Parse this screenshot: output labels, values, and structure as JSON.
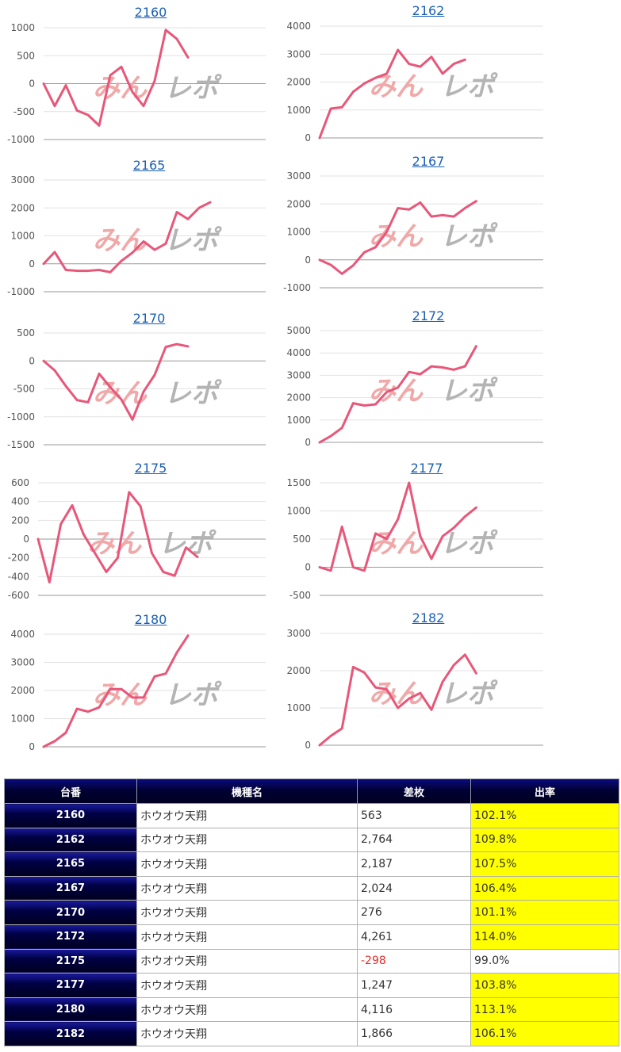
{
  "colors": {
    "line": "#e8577a",
    "watermark_pink": "#f0a8a8",
    "watermark_gray": "#b4b4b4",
    "highlight": "#ffff00",
    "header_bg": "#000044",
    "negative": "#e03030"
  },
  "watermark": "みんレポ",
  "chart_data": [
    {
      "type": "line",
      "title": "2160",
      "yticks": [
        1000,
        500,
        0,
        -500,
        -1000
      ],
      "ylim": [
        -1000,
        1000
      ],
      "series": [
        {
          "values": [
            0,
            -400,
            -30,
            -480,
            -560,
            -750,
            150,
            300,
            -150,
            -400,
            50,
            960,
            800,
            470
          ]
        }
      ]
    },
    {
      "type": "line",
      "title": "2162",
      "yticks": [
        4000,
        3000,
        2000,
        1000,
        0
      ],
      "ylim": [
        0,
        4000
      ],
      "series": [
        {
          "values": [
            0,
            1050,
            1100,
            1650,
            1950,
            2150,
            2300,
            3150,
            2650,
            2550,
            2900,
            2300,
            2650,
            2800
          ]
        }
      ]
    },
    {
      "type": "line",
      "title": "2165",
      "yticks": [
        3000,
        2000,
        1000,
        0,
        -1000
      ],
      "ylim": [
        -1000,
        3000
      ],
      "series": [
        {
          "values": [
            0,
            420,
            -220,
            -250,
            -250,
            -220,
            -300,
            100,
            400,
            800,
            500,
            720,
            1850,
            1600,
            2000,
            2200
          ]
        }
      ]
    },
    {
      "type": "line",
      "title": "2167",
      "yticks": [
        3000,
        2000,
        1000,
        0,
        -1000
      ],
      "ylim": [
        -1000,
        3000
      ],
      "series": [
        {
          "values": [
            0,
            -180,
            -500,
            -200,
            270,
            450,
            1000,
            1850,
            1800,
            2050,
            1550,
            1600,
            1550,
            1850,
            2100
          ]
        }
      ]
    },
    {
      "type": "line",
      "title": "2170",
      "yticks": [
        500,
        0,
        -500,
        -1000,
        -1500
      ],
      "ylim": [
        -1500,
        500
      ],
      "series": [
        {
          "values": [
            0,
            -170,
            -450,
            -700,
            -740,
            -230,
            -470,
            -690,
            -1050,
            -550,
            -250,
            250,
            300,
            260
          ]
        }
      ]
    },
    {
      "type": "line",
      "title": "2172",
      "yticks": [
        5000,
        4000,
        3000,
        2000,
        1000,
        0
      ],
      "ylim": [
        0,
        5000
      ],
      "series": [
        {
          "values": [
            0,
            280,
            650,
            1750,
            1650,
            1700,
            2250,
            2450,
            3150,
            3050,
            3400,
            3350,
            3250,
            3400,
            4300
          ]
        }
      ]
    },
    {
      "type": "line",
      "title": "2175",
      "yticks": [
        600,
        400,
        200,
        0,
        -200,
        -400,
        -600
      ],
      "ylim": [
        -600,
        600
      ],
      "series": [
        {
          "values": [
            0,
            -460,
            160,
            360,
            50,
            -150,
            -350,
            -200,
            500,
            350,
            -150,
            -350,
            -390,
            -90,
            -190
          ]
        }
      ]
    },
    {
      "type": "line",
      "title": "2177",
      "yticks": [
        1500,
        1000,
        500,
        0,
        -500
      ],
      "ylim": [
        -500,
        1500
      ],
      "series": [
        {
          "values": [
            0,
            -60,
            720,
            0,
            -60,
            600,
            500,
            850,
            1500,
            550,
            150,
            550,
            700,
            900,
            1060
          ]
        }
      ]
    },
    {
      "type": "line",
      "title": "2180",
      "yticks": [
        4000,
        3000,
        2000,
        1000,
        0
      ],
      "ylim": [
        0,
        4000
      ],
      "series": [
        {
          "values": [
            0,
            200,
            500,
            1350,
            1250,
            1400,
            2050,
            2050,
            1750,
            1750,
            2500,
            2600,
            3350,
            3950
          ]
        }
      ]
    },
    {
      "type": "line",
      "title": "2182",
      "yticks": [
        3000,
        2000,
        1000,
        0
      ],
      "ylim": [
        0,
        3000
      ],
      "series": [
        {
          "values": [
            0,
            250,
            450,
            2100,
            1950,
            1550,
            1500,
            1000,
            1250,
            1400,
            950,
            1700,
            2150,
            2430,
            1930
          ]
        }
      ]
    }
  ],
  "table": {
    "headers": {
      "number": "台番",
      "model": "機種名",
      "diff": "差枚",
      "rate": "出率"
    },
    "rows": [
      {
        "number": "2160",
        "model": "ホウオウ天翔",
        "diff": "563",
        "rate": "102.1%"
      },
      {
        "number": "2162",
        "model": "ホウオウ天翔",
        "diff": "2,764",
        "rate": "109.8%"
      },
      {
        "number": "2165",
        "model": "ホウオウ天翔",
        "diff": "2,187",
        "rate": "107.5%"
      },
      {
        "number": "2167",
        "model": "ホウオウ天翔",
        "diff": "2,024",
        "rate": "106.4%"
      },
      {
        "number": "2170",
        "model": "ホウオウ天翔",
        "diff": "276",
        "rate": "101.1%"
      },
      {
        "number": "2172",
        "model": "ホウオウ天翔",
        "diff": "4,261",
        "rate": "114.0%"
      },
      {
        "number": "2175",
        "model": "ホウオウ天翔",
        "diff": "-298",
        "rate": "99.0%"
      },
      {
        "number": "2177",
        "model": "ホウオウ天翔",
        "diff": "1,247",
        "rate": "103.8%"
      },
      {
        "number": "2180",
        "model": "ホウオウ天翔",
        "diff": "4,116",
        "rate": "113.1%"
      },
      {
        "number": "2182",
        "model": "ホウオウ天翔",
        "diff": "1,866",
        "rate": "106.1%"
      }
    ]
  }
}
